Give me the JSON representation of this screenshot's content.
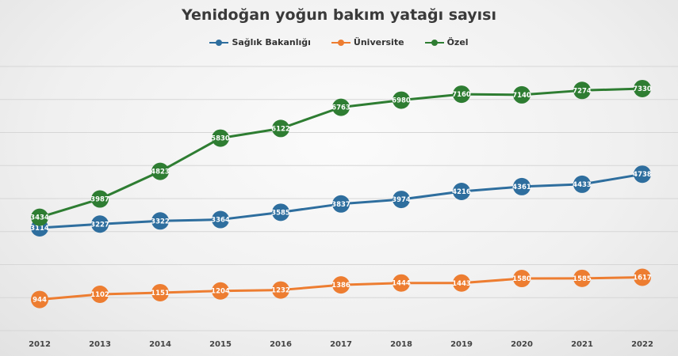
{
  "chart_data": {
    "type": "line",
    "title": "Yenidoğan yoğun bakım yatağı sayısı",
    "xlabel": "",
    "ylabel": "",
    "x": [
      "2012",
      "2013",
      "2014",
      "2015",
      "2016",
      "2017",
      "2018",
      "2019",
      "2020",
      "2021",
      "2022"
    ],
    "ylim": [
      0,
      8000
    ],
    "grid": true,
    "legend_position": "top-center",
    "series": [
      {
        "name": "Sağlık Bakanlığı",
        "color": "#2e6e9e",
        "values": [
          3114,
          3227,
          3322,
          3364,
          3585,
          3837,
          3974,
          4216,
          4361,
          4433,
          4738
        ],
        "labels": [
          "3114",
          "3227",
          "3322",
          "3364",
          "3585",
          "3837",
          "3974",
          "4216",
          "4361",
          "4433",
          "4738"
        ]
      },
      {
        "name": "Üniversite",
        "color": "#ed7d31",
        "values": [
          944,
          1102,
          1151,
          1204,
          1232,
          1386,
          1444,
          1443,
          1580,
          1585,
          1617
        ],
        "labels": [
          "944",
          "1102",
          "1151",
          "1204",
          "1232",
          "1386",
          "1444",
          "1443",
          "1580",
          "1585",
          "1617"
        ]
      },
      {
        "name": "Özel",
        "color": "#2e7d32",
        "values": [
          3434,
          3987,
          4823,
          5830,
          6122,
          6763,
          6980,
          7160,
          7140,
          7274,
          7330
        ],
        "labels": [
          "3434",
          "3987",
          "4823",
          "5830",
          "6122",
          "6763",
          "6980",
          "7160",
          "7140",
          "7274",
          "7330"
        ]
      }
    ]
  }
}
